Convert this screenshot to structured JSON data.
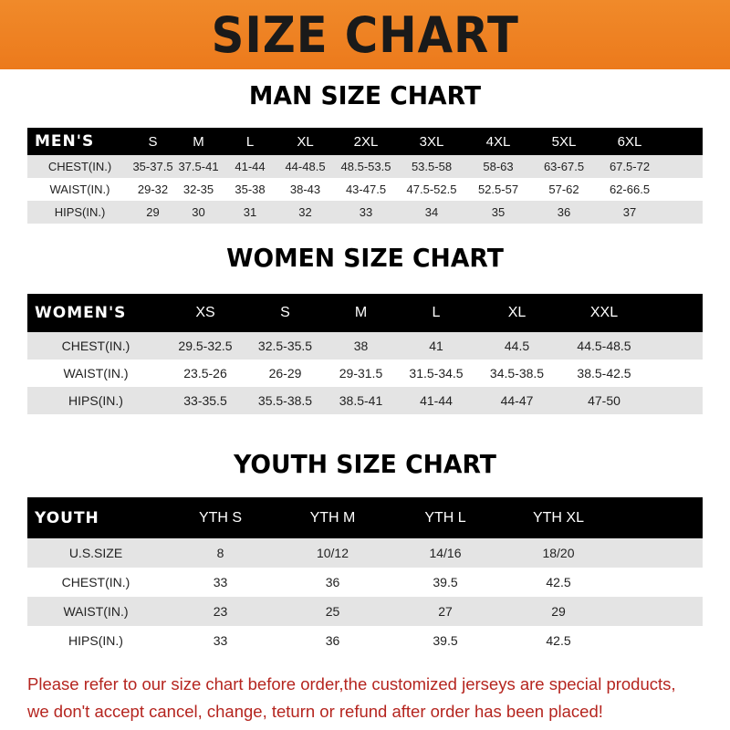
{
  "banner": {
    "title": "SIZE CHART"
  },
  "men": {
    "title": "MAN SIZE CHART",
    "header": "MEN'S",
    "sizes": [
      "S",
      "M",
      "L",
      "XL",
      "2XL",
      "3XL",
      "4XL",
      "5XL",
      "6XL"
    ],
    "rows": [
      {
        "label": "CHEST(IN.)",
        "values": [
          "35-37.5",
          "37.5-41",
          "41-44",
          "44-48.5",
          "48.5-53.5",
          "53.5-58",
          "58-63",
          "63-67.5",
          "67.5-72"
        ]
      },
      {
        "label": "WAIST(IN.)",
        "values": [
          "29-32",
          "32-35",
          "35-38",
          "38-43",
          "43-47.5",
          "47.5-52.5",
          "52.5-57",
          "57-62",
          "62-66.5"
        ]
      },
      {
        "label": "HIPS(IN.)",
        "values": [
          "29",
          "30",
          "31",
          "32",
          "33",
          "34",
          "35",
          "36",
          "37"
        ]
      }
    ]
  },
  "women": {
    "title": "WOMEN SIZE CHART",
    "header": "WOMEN'S",
    "sizes": [
      "XS",
      "S",
      "M",
      "L",
      "XL",
      "XXL"
    ],
    "rows": [
      {
        "label": "CHEST(IN.)",
        "values": [
          "29.5-32.5",
          "32.5-35.5",
          "38",
          "41",
          "44.5",
          "44.5-48.5"
        ]
      },
      {
        "label": "WAIST(IN.)",
        "values": [
          "23.5-26",
          "26-29",
          "29-31.5",
          "31.5-34.5",
          "34.5-38.5",
          "38.5-42.5"
        ]
      },
      {
        "label": "HIPS(IN.)",
        "values": [
          "33-35.5",
          "35.5-38.5",
          "38.5-41",
          "41-44",
          "44-47",
          "47-50"
        ]
      }
    ]
  },
  "youth": {
    "title": "YOUTH SIZE CHART",
    "header": "YOUTH",
    "sizes": [
      "YTH S",
      "YTH M",
      "YTH L",
      "YTH XL"
    ],
    "rows": [
      {
        "label": "U.S.SIZE",
        "values": [
          "8",
          "10/12",
          "14/16",
          "18/20"
        ]
      },
      {
        "label": "CHEST(IN.)",
        "values": [
          "33",
          "36",
          "39.5",
          "42.5"
        ]
      },
      {
        "label": "WAIST(IN.)",
        "values": [
          "23",
          "25",
          "27",
          "29"
        ]
      },
      {
        "label": "HIPS(IN.)",
        "values": [
          "33",
          "36",
          "39.5",
          "42.5"
        ]
      }
    ]
  },
  "note": {
    "line1": "Please refer to our size chart before order,the customized jerseys are special products,",
    "line2": "we don't accept cancel, change, teturn or refund after order has been placed!"
  }
}
